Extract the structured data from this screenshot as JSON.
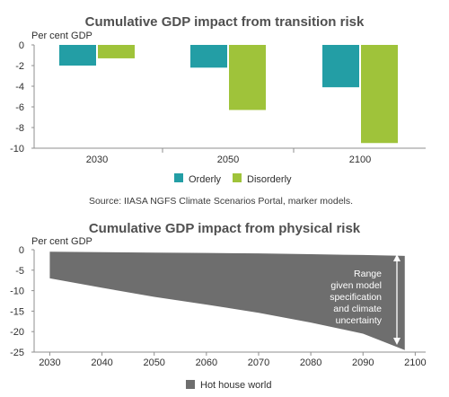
{
  "chart_data": [
    {
      "type": "bar",
      "title": "Cumulative GDP impact from transition risk",
      "ylabel": "Per cent GDP",
      "categories": [
        "2030",
        "2050",
        "2100"
      ],
      "series": [
        {
          "name": "Orderly",
          "color": "#239EA5",
          "values": [
            -2.0,
            -2.2,
            -4.1
          ]
        },
        {
          "name": "Disorderly",
          "color": "#9FC33A",
          "values": [
            -1.3,
            -6.3,
            -9.5
          ]
        }
      ],
      "ylim": [
        -10,
        0
      ],
      "yticks": [
        0,
        -2,
        -4,
        -6,
        -8,
        -10
      ],
      "grid": false,
      "legend": "bottom",
      "source": "Source: IIASA NGFS Climate Scenarios Portal, marker models."
    },
    {
      "type": "area",
      "title": "Cumulative GDP impact from physical risk",
      "ylabel": "Per cent GDP",
      "x": [
        2030,
        2040,
        2050,
        2060,
        2070,
        2080,
        2090,
        2098
      ],
      "series": [
        {
          "name": "Hot house world",
          "color": "#6E6E6E",
          "upper": [
            -0.5,
            -0.6,
            -0.7,
            -0.8,
            -0.9,
            -1.1,
            -1.3,
            -1.5
          ],
          "lower": [
            -7.0,
            -9.3,
            -11.5,
            -13.4,
            -15.4,
            -17.8,
            -20.5,
            -24.5
          ]
        }
      ],
      "xlim": [
        2027,
        2102
      ],
      "ylim": [
        -25,
        0
      ],
      "xticks": [
        2030,
        2040,
        2050,
        2060,
        2070,
        2080,
        2090,
        2100
      ],
      "yticks": [
        0,
        -5,
        -10,
        -15,
        -20,
        -25
      ],
      "annotation": "Range given model specification and climate uncertainty",
      "annotation_lines": [
        "Range",
        "given model",
        "specification",
        "and climate",
        "uncertainty"
      ],
      "grid": false,
      "legend": "bottom"
    }
  ]
}
